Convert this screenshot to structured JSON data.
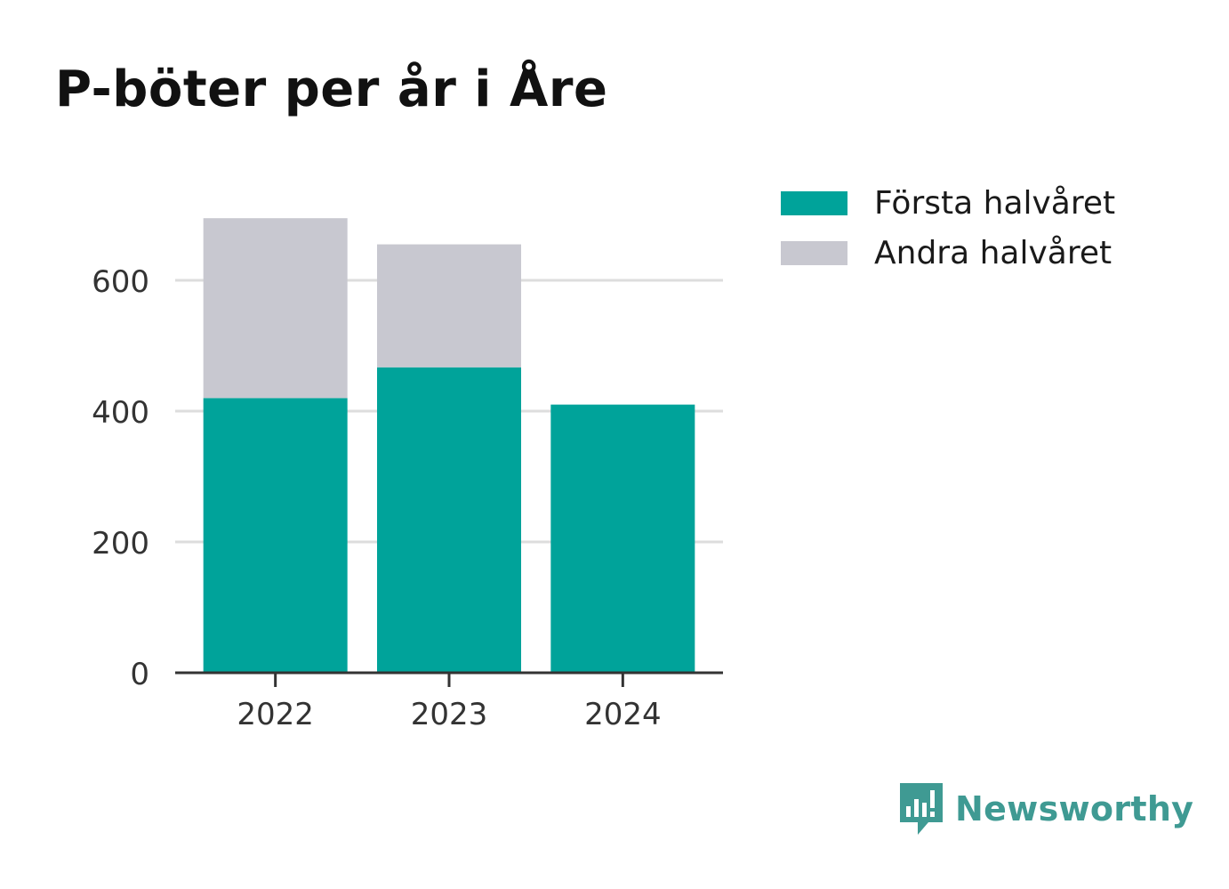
{
  "title": "P-böter per år i Åre",
  "legend": [
    {
      "label": "Första halvåret",
      "color": "#00a39a"
    },
    {
      "label": "Andra halvåret",
      "color": "#c8c8d0"
    }
  ],
  "brand": {
    "name": "Newsworthy",
    "icon": "newsworthy-logo-icon",
    "color": "#3f9a93"
  },
  "chart_data": {
    "type": "bar",
    "stacked": true,
    "categories": [
      "2022",
      "2023",
      "2024"
    ],
    "series": [
      {
        "name": "Första halvåret",
        "values": [
          420,
          467,
          410
        ],
        "color": "#00a39a"
      },
      {
        "name": "Andra halvåret",
        "values": [
          275,
          188,
          0
        ],
        "color": "#c8c8d0"
      }
    ],
    "y_ticks": [
      "0",
      "200",
      "400",
      "600"
    ],
    "ylim": [
      0,
      700
    ],
    "grid": true,
    "legend_position": "right"
  }
}
